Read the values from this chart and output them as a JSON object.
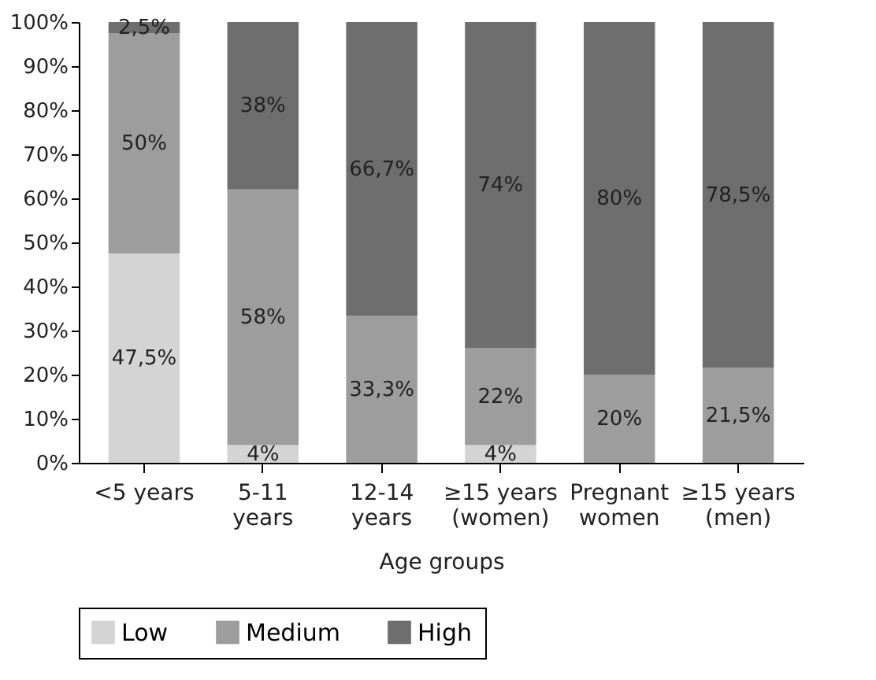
{
  "chart_data": {
    "type": "bar",
    "stacked": true,
    "xlabel": "Age groups",
    "categories": [
      "<5 years",
      "5-11 years",
      "12-14 years",
      "≥15 years (women)",
      "Pregnant women",
      "≥15 years (men)"
    ],
    "series": [
      {
        "name": "Low",
        "color": "#d4d4d4",
        "values": [
          47.5,
          4,
          0,
          4,
          0,
          0
        ],
        "value_labels": [
          "47,5%",
          "4%",
          null,
          "4%",
          null,
          null
        ]
      },
      {
        "name": "Medium",
        "color": "#9d9d9d",
        "values": [
          50,
          58,
          33.3,
          22,
          20,
          21.5
        ],
        "value_labels": [
          "50%",
          "58%",
          "33,3%",
          "22%",
          "20%",
          "21,5%"
        ]
      },
      {
        "name": "High",
        "color": "#6e6e6e",
        "values": [
          2.5,
          38,
          66.7,
          74,
          80,
          78.5
        ],
        "value_labels": [
          "2,5%",
          "38%",
          "66,7%",
          "74%",
          "80%",
          "78,5%"
        ]
      }
    ],
    "ylim": [
      0,
      100
    ],
    "yticks": [
      {
        "value": 0,
        "label": "0%"
      },
      {
        "value": 10,
        "label": "10%"
      },
      {
        "value": 20,
        "label": "20%"
      },
      {
        "value": 30,
        "label": "30%"
      },
      {
        "value": 40,
        "label": "40%"
      },
      {
        "value": 50,
        "label": "50%"
      },
      {
        "value": 60,
        "label": "60%"
      },
      {
        "value": 70,
        "label": "70%"
      },
      {
        "value": 80,
        "label": "80%"
      },
      {
        "value": 90,
        "label": "90%"
      },
      {
        "value": 100,
        "label": "100%"
      }
    ],
    "grid": false,
    "legend": "bottom"
  }
}
